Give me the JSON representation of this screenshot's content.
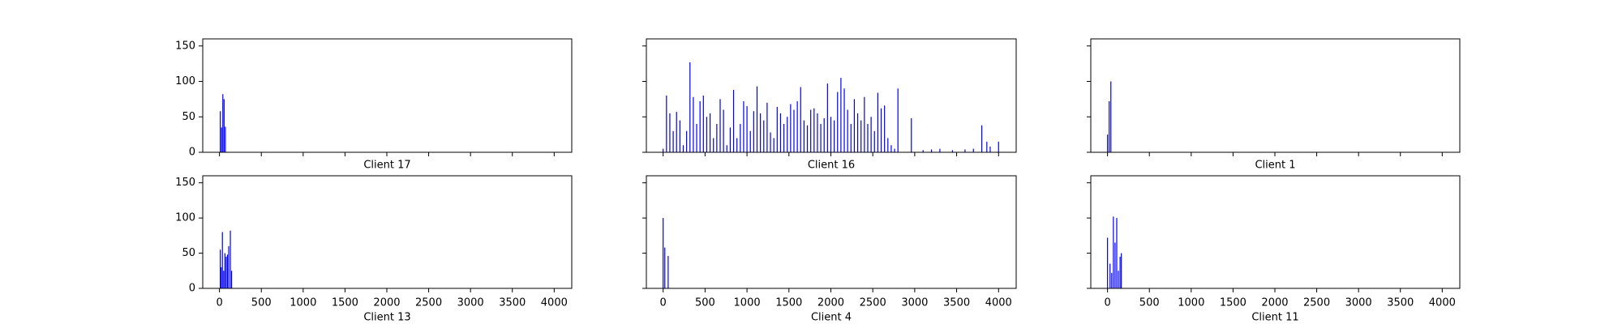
{
  "chart_data": [
    {
      "type": "bar",
      "xlabel": "Client 17",
      "color": "#0000ff",
      "x": [
        10,
        25,
        40,
        55,
        70
      ],
      "values": [
        58,
        35,
        82,
        75,
        36
      ],
      "xlim": [
        -200,
        4210
      ],
      "xticks": [
        0,
        500,
        1000,
        1500,
        2000,
        2500,
        3000,
        3500,
        4000
      ],
      "ylim": [
        0,
        160
      ],
      "yticks": [
        0,
        50,
        100,
        150
      ]
    },
    {
      "type": "bar",
      "xlabel": "Client 16",
      "color": "#0000ff",
      "x": [
        0,
        40,
        80,
        120,
        160,
        200,
        240,
        280,
        320,
        360,
        400,
        440,
        480,
        520,
        560,
        600,
        640,
        680,
        720,
        760,
        800,
        840,
        880,
        920,
        960,
        1000,
        1040,
        1080,
        1120,
        1160,
        1200,
        1240,
        1280,
        1320,
        1360,
        1400,
        1440,
        1480,
        1520,
        1560,
        1600,
        1640,
        1680,
        1720,
        1760,
        1800,
        1840,
        1880,
        1920,
        1960,
        2000,
        2040,
        2080,
        2120,
        2160,
        2200,
        2240,
        2280,
        2320,
        2360,
        2400,
        2440,
        2480,
        2520,
        2560,
        2600,
        2640,
        2680,
        2720,
        2760,
        2800,
        2960,
        3100,
        3200,
        3300,
        3450,
        3600,
        3700,
        3800,
        3860,
        3900,
        4000
      ],
      "values": [
        5,
        80,
        55,
        30,
        57,
        45,
        10,
        30,
        127,
        78,
        40,
        72,
        80,
        50,
        55,
        20,
        40,
        75,
        60,
        10,
        35,
        88,
        20,
        40,
        72,
        65,
        30,
        58,
        93,
        55,
        45,
        70,
        28,
        20,
        64,
        55,
        40,
        50,
        68,
        60,
        72,
        92,
        45,
        38,
        60,
        62,
        55,
        40,
        48,
        97,
        50,
        45,
        85,
        105,
        90,
        60,
        40,
        75,
        55,
        45,
        78,
        40,
        50,
        30,
        84,
        62,
        66,
        20,
        10,
        5,
        90,
        48,
        3,
        4,
        5,
        3,
        4,
        5,
        38,
        15,
        8,
        15
      ],
      "xlim": [
        -200,
        4210
      ],
      "xticks": [
        0,
        500,
        1000,
        1500,
        2000,
        2500,
        3000,
        3500,
        4000
      ],
      "ylim": [
        0,
        160
      ],
      "yticks": [
        0,
        50,
        100,
        150
      ]
    },
    {
      "type": "bar",
      "xlabel": "Client 1",
      "color": "#0000ff",
      "x": [
        0,
        20,
        40
      ],
      "values": [
        25,
        72,
        100
      ],
      "xlim": [
        -200,
        4210
      ],
      "xticks": [
        0,
        500,
        1000,
        1500,
        2000,
        2500,
        3000,
        3500,
        4000
      ],
      "ylim": [
        0,
        160
      ],
      "yticks": [
        0,
        50,
        100,
        150
      ]
    },
    {
      "type": "bar",
      "xlabel": "Client 13",
      "color": "#0000ff",
      "x": [
        10,
        20,
        35,
        50,
        65,
        80,
        95,
        110,
        130,
        145
      ],
      "values": [
        55,
        30,
        80,
        25,
        50,
        45,
        48,
        60,
        82,
        25
      ],
      "xlim": [
        -200,
        4210
      ],
      "xticks": [
        0,
        500,
        1000,
        1500,
        2000,
        2500,
        3000,
        3500,
        4000
      ],
      "ylim": [
        0,
        160
      ],
      "yticks": [
        0,
        50,
        100,
        150
      ]
    },
    {
      "type": "bar",
      "xlabel": "Client 4",
      "color": "#0000ff",
      "x": [
        0,
        20,
        60
      ],
      "values": [
        100,
        58,
        46
      ],
      "xlim": [
        -200,
        4210
      ],
      "xticks": [
        0,
        500,
        1000,
        1500,
        2000,
        2500,
        3000,
        3500,
        4000
      ],
      "ylim": [
        0,
        160
      ],
      "yticks": [
        0,
        50,
        100,
        150
      ]
    },
    {
      "type": "bar",
      "xlabel": "Client 11",
      "color": "#0000ff",
      "x": [
        0,
        30,
        50,
        70,
        90,
        110,
        130,
        150,
        165
      ],
      "values": [
        72,
        35,
        22,
        102,
        65,
        100,
        25,
        45,
        50
      ],
      "xlim": [
        -200,
        4210
      ],
      "xticks": [
        0,
        500,
        1000,
        1500,
        2000,
        2500,
        3000,
        3500,
        4000
      ],
      "ylim": [
        0,
        160
      ],
      "yticks": [
        0,
        50,
        100,
        150
      ]
    }
  ]
}
